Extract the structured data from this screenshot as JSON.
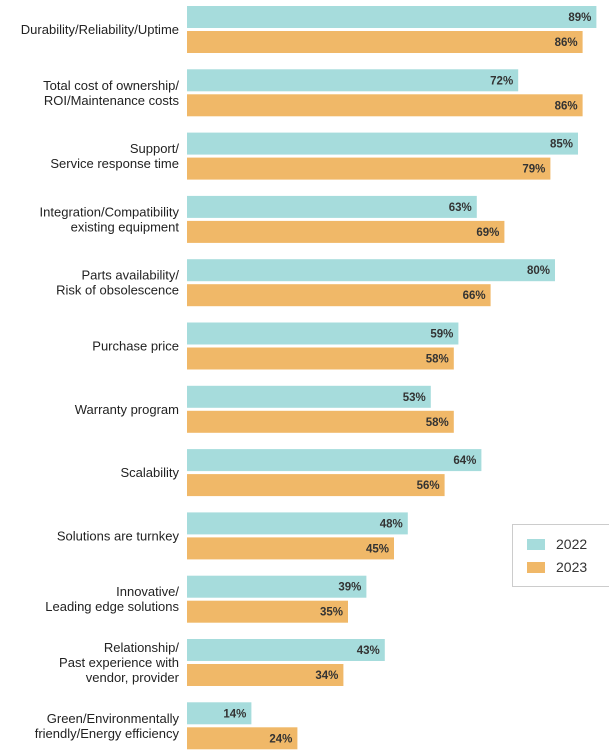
{
  "chart_data": {
    "type": "bar",
    "orientation": "horizontal",
    "categories": [
      [
        "Durability/Reliability/Uptime"
      ],
      [
        "Total cost of ownership/",
        "ROI/Maintenance costs"
      ],
      [
        "Support/",
        "Service response time"
      ],
      [
        "Integration/Compatibility",
        "existing equipment"
      ],
      [
        "Parts availability/",
        "Risk of obsolescence"
      ],
      [
        "Purchase price"
      ],
      [
        "Warranty program"
      ],
      [
        "Scalability"
      ],
      [
        "Solutions are turnkey"
      ],
      [
        "Innovative/",
        "Leading edge solutions"
      ],
      [
        "Relationship/",
        "Past experience with",
        "vendor, provider"
      ],
      [
        "Green/Environmentally",
        "friendly/Energy efficiency"
      ]
    ],
    "series": [
      {
        "name": "2022",
        "color": "#a6dcdc",
        "values": [
          89,
          72,
          85,
          63,
          80,
          59,
          53,
          64,
          48,
          39,
          43,
          14
        ]
      },
      {
        "name": "2023",
        "color": "#f0b868",
        "values": [
          86,
          86,
          79,
          69,
          66,
          58,
          58,
          56,
          45,
          35,
          34,
          24
        ]
      }
    ],
    "value_suffix": "%",
    "xlim": [
      0,
      100
    ],
    "grid": false,
    "legend_placement": "right"
  }
}
